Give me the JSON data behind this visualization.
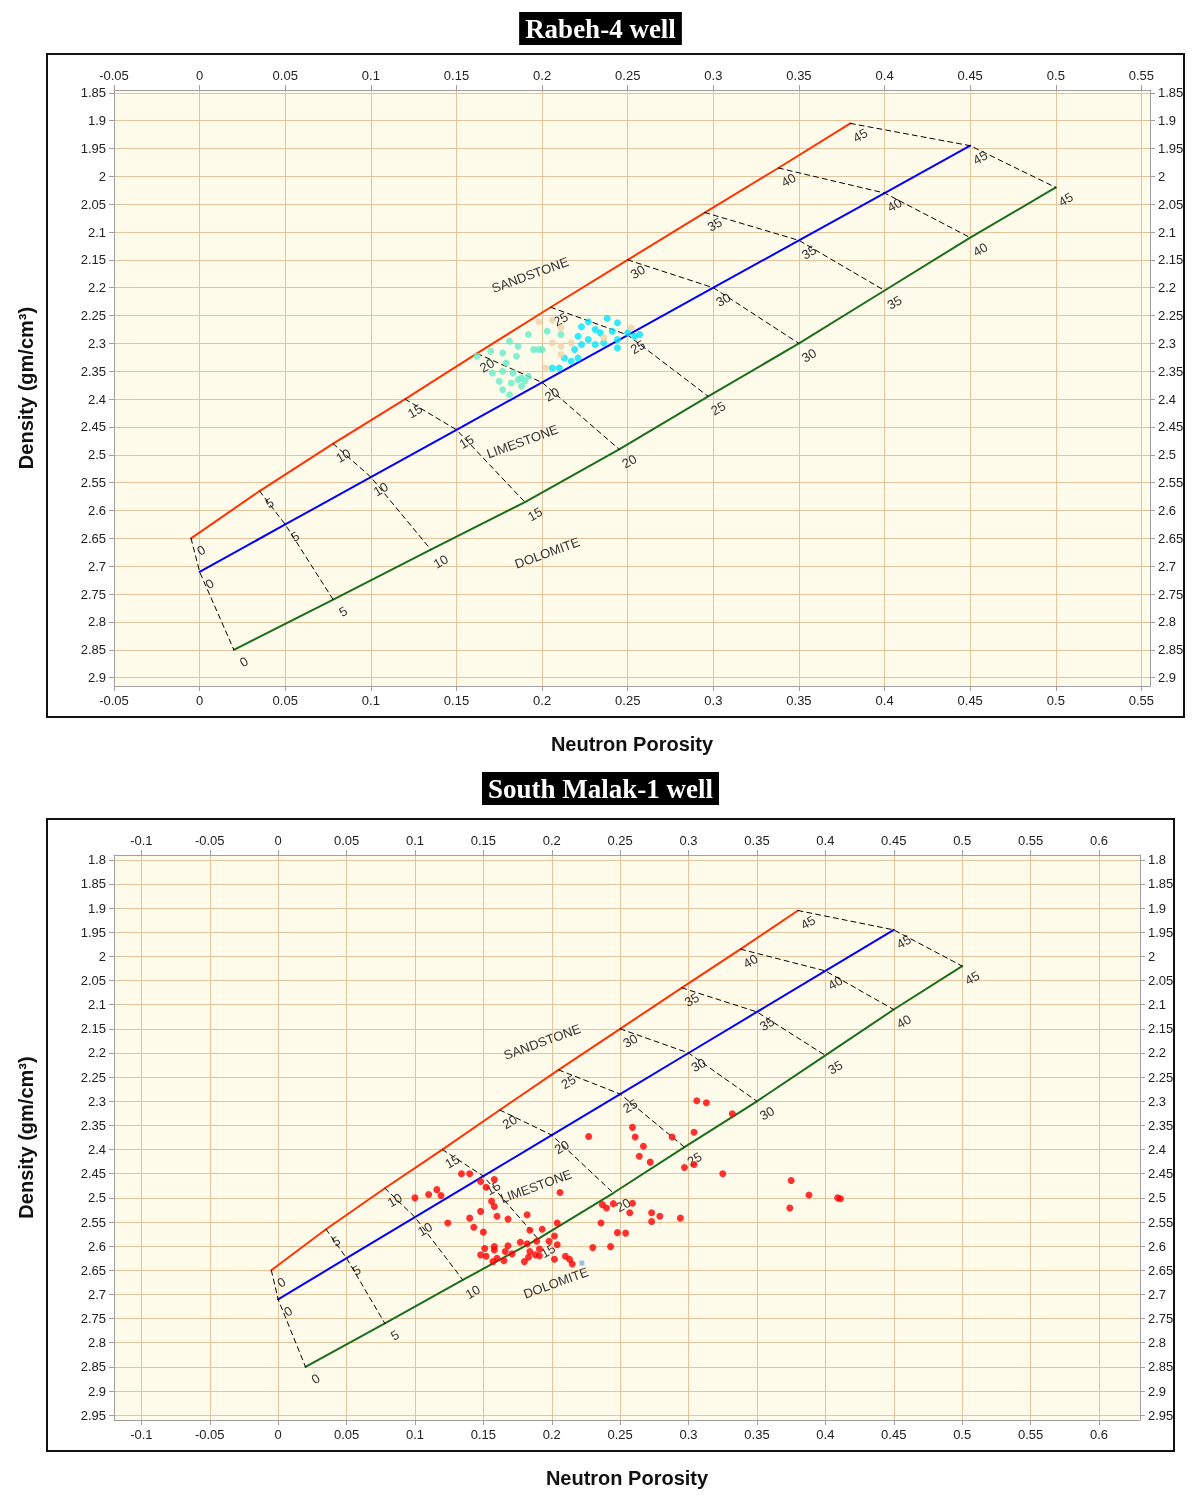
{
  "chart_data": [
    {
      "type": "scatter",
      "title": "Rabeh-4 well",
      "xlabel": "Neutron Porosity",
      "ylabel": "Density (gm/cm³)",
      "xlim": [
        -0.05,
        0.555
      ],
      "xticks": [
        -0.05,
        0,
        0.05,
        0.1,
        0.15,
        0.2,
        0.25,
        0.3,
        0.35,
        0.4,
        0.45,
        0.5,
        0.55
      ],
      "x2lim": [
        -0.05,
        0.555
      ],
      "x2ticks": [
        -0.05,
        0,
        0.05,
        0.1,
        0.15,
        0.2,
        0.25,
        0.3,
        0.35,
        0.4,
        0.45,
        0.5,
        0.55
      ],
      "ylim": [
        2.915,
        1.845
      ],
      "yticks": [
        1.85,
        1.9,
        1.95,
        2,
        2.05,
        2.1,
        2.15,
        2.2,
        2.25,
        2.3,
        2.35,
        2.4,
        2.45,
        2.5,
        2.55,
        2.6,
        2.65,
        2.7,
        2.75,
        2.8,
        2.85,
        2.9
      ],
      "y2lim": [
        2.915,
        1.845
      ],
      "y2ticks": [
        1.85,
        1.9,
        1.95,
        2,
        2.05,
        2.1,
        2.15,
        2.2,
        2.25,
        2.3,
        2.35,
        2.4,
        2.45,
        2.5,
        2.55,
        2.6,
        2.65,
        2.7,
        2.75,
        2.8,
        2.85,
        2.9
      ],
      "grid": true,
      "annotations": [
        {
          "text": "0",
          "x": -0.005,
          "y": 2.65
        },
        {
          "text": "5",
          "x": 0.035,
          "y": 2.565
        },
        {
          "text": "10",
          "x": 0.078,
          "y": 2.48
        },
        {
          "text": "15",
          "x": 0.12,
          "y": 2.4
        },
        {
          "text": "20",
          "x": 0.162,
          "y": 2.318
        },
        {
          "text": "25",
          "x": 0.205,
          "y": 2.235
        },
        {
          "text": "30",
          "x": 0.25,
          "y": 2.15
        },
        {
          "text": "35",
          "x": 0.295,
          "y": 2.065
        },
        {
          "text": "40",
          "x": 0.338,
          "y": 1.985
        },
        {
          "text": "45",
          "x": 0.38,
          "y": 1.905
        },
        {
          "text": "0",
          "x": 0,
          "y": 2.71
        },
        {
          "text": "5",
          "x": 0.05,
          "y": 2.625
        },
        {
          "text": "10",
          "x": 0.1,
          "y": 2.54
        },
        {
          "text": "15",
          "x": 0.15,
          "y": 2.455
        },
        {
          "text": "20",
          "x": 0.2,
          "y": 2.37
        },
        {
          "text": "25",
          "x": 0.25,
          "y": 2.285
        },
        {
          "text": "30",
          "x": 0.3,
          "y": 2.2
        },
        {
          "text": "35",
          "x": 0.35,
          "y": 2.115
        },
        {
          "text": "40",
          "x": 0.4,
          "y": 2.03
        },
        {
          "text": "45",
          "x": 0.45,
          "y": 1.945
        },
        {
          "text": "0",
          "x": 0.02,
          "y": 2.85
        },
        {
          "text": "5",
          "x": 0.078,
          "y": 2.76
        },
        {
          "text": "10",
          "x": 0.135,
          "y": 2.67
        },
        {
          "text": "15",
          "x": 0.19,
          "y": 2.585
        },
        {
          "text": "20",
          "x": 0.245,
          "y": 2.49
        },
        {
          "text": "25",
          "x": 0.297,
          "y": 2.395
        },
        {
          "text": "30",
          "x": 0.35,
          "y": 2.3
        },
        {
          "text": "35",
          "x": 0.4,
          "y": 2.205
        },
        {
          "text": "40",
          "x": 0.45,
          "y": 2.11
        },
        {
          "text": "45",
          "x": 0.5,
          "y": 2.02
        }
      ],
      "series": [
        {
          "type": "line",
          "name": "SANDSTONE",
          "color": "#ff3300",
          "marker": "none",
          "x": [
            -0.005,
            0.035,
            0.078,
            0.12,
            0.162,
            0.205,
            0.25,
            0.295,
            0.338,
            0.38
          ],
          "values": [
            2.65,
            2.565,
            2.48,
            2.4,
            2.318,
            2.235,
            2.15,
            2.065,
            1.985,
            1.905
          ]
        },
        {
          "type": "line",
          "name": "LIMESTONE",
          "color": "#0000ff",
          "marker": "none",
          "x": [
            0,
            0.05,
            0.1,
            0.15,
            0.2,
            0.25,
            0.3,
            0.35,
            0.4,
            0.45
          ],
          "values": [
            2.71,
            2.625,
            2.54,
            2.455,
            2.37,
            2.285,
            2.2,
            2.115,
            2.03,
            1.945
          ]
        },
        {
          "type": "line",
          "name": "DOLOMITE",
          "color": "#1a6e1a",
          "marker": "none",
          "x": [
            0.02,
            0.078,
            0.135,
            0.19,
            0.245,
            0.297,
            0.35,
            0.4,
            0.45,
            0.5
          ],
          "values": [
            2.85,
            2.76,
            2.67,
            2.585,
            2.49,
            2.395,
            2.3,
            2.205,
            2.11,
            2.02
          ]
        },
        {
          "type": "line",
          "color": "#000000",
          "marker": "none",
          "line_style": "dashed",
          "x": [
            -0.005,
            0,
            0.02
          ],
          "values": [
            2.65,
            2.71,
            2.85
          ]
        },
        {
          "type": "line",
          "color": "#000000",
          "marker": "none",
          "line_style": "dashed",
          "x": [
            0.035,
            0.05,
            0.078
          ],
          "values": [
            2.565,
            2.625,
            2.76
          ]
        },
        {
          "type": "line",
          "color": "#000000",
          "marker": "none",
          "line_style": "dashed",
          "x": [
            0.078,
            0.1,
            0.135
          ],
          "values": [
            2.48,
            2.54,
            2.67
          ]
        },
        {
          "type": "line",
          "color": "#000000",
          "marker": "none",
          "line_style": "dashed",
          "x": [
            0.12,
            0.15,
            0.19
          ],
          "values": [
            2.4,
            2.455,
            2.585
          ]
        },
        {
          "type": "line",
          "color": "#000000",
          "marker": "none",
          "line_style": "dashed",
          "x": [
            0.162,
            0.2,
            0.245
          ],
          "values": [
            2.318,
            2.37,
            2.49
          ]
        },
        {
          "type": "line",
          "color": "#000000",
          "marker": "none",
          "line_style": "dashed",
          "x": [
            0.205,
            0.25,
            0.297
          ],
          "values": [
            2.235,
            2.285,
            2.395
          ]
        },
        {
          "type": "line",
          "color": "#000000",
          "marker": "none",
          "line_style": "dashed",
          "x": [
            0.25,
            0.3,
            0.35
          ],
          "values": [
            2.15,
            2.2,
            2.3
          ]
        },
        {
          "type": "line",
          "color": "#000000",
          "marker": "none",
          "line_style": "dashed",
          "x": [
            0.295,
            0.35,
            0.4
          ],
          "values": [
            2.065,
            2.115,
            2.205
          ]
        },
        {
          "type": "line",
          "color": "#000000",
          "marker": "none",
          "line_style": "dashed",
          "x": [
            0.338,
            0.4,
            0.45
          ],
          "values": [
            1.985,
            2.03,
            2.11
          ]
        },
        {
          "type": "line",
          "color": "#000000",
          "marker": "none",
          "line_style": "dashed",
          "x": [
            0.38,
            0.45,
            0.5
          ],
          "values": [
            1.905,
            1.945,
            2.02
          ]
        },
        {
          "color": "#00e5ff",
          "marker": "circle",
          "x": [
            0.227,
            0.223,
            0.231,
            0.238,
            0.244,
            0.241,
            0.234,
            0.244,
            0.25,
            0.254,
            0.257,
            0.221,
            0.227,
            0.223,
            0.231,
            0.236,
            0.244,
            0.219,
            0.213,
            0.217,
            0.21,
            0.206,
            0.221
          ],
          "values": [
            2.261,
            2.27,
            2.275,
            2.255,
            2.263,
            2.278,
            2.281,
            2.293,
            2.281,
            2.287,
            2.284,
            2.287,
            2.293,
            2.302,
            2.302,
            2.299,
            2.308,
            2.311,
            2.326,
            2.332,
            2.344,
            2.344,
            2.326
          ]
        },
        {
          "color": "#66eec8",
          "marker": "circle",
          "x": [
            0.162,
            0.17,
            0.177,
            0.181,
            0.186,
            0.192,
            0.195,
            0.2,
            0.185,
            0.179,
            0.177,
            0.183,
            0.186,
            0.188,
            0.192,
            0.182,
            0.188,
            0.177,
            0.181,
            0.171,
            0.175,
            0.203,
            0.211,
            0.198,
            0.19
          ],
          "values": [
            2.323,
            2.314,
            2.317,
            2.296,
            2.305,
            2.284,
            2.311,
            2.311,
            2.323,
            2.335,
            2.35,
            2.353,
            2.365,
            2.362,
            2.359,
            2.371,
            2.377,
            2.383,
            2.392,
            2.353,
            2.368,
            2.278,
            2.284,
            2.311,
            2.368
          ]
        },
        {
          "color": "#f0d2aa",
          "marker": "circle",
          "x": [
            0.198,
            0.206,
            0.211,
            0.206,
            0.211,
            0.217,
            0.211,
            0.202,
            0.252,
            0.236
          ],
          "values": [
            2.261,
            2.258,
            2.272,
            2.299,
            2.305,
            2.299,
            2.32,
            2.344,
            2.272,
            2.29
          ]
        }
      ]
    },
    {
      "type": "scatter",
      "title": "South Malak-1 well",
      "xlabel": "Neutron Porosity",
      "ylabel": "Density (gm/cm³)",
      "xlim": [
        -0.12,
        0.63
      ],
      "xticks": [
        -0.1,
        -0.05,
        0,
        0.05,
        0.1,
        0.15,
        0.2,
        0.25,
        0.3,
        0.35,
        0.4,
        0.45,
        0.5,
        0.55,
        0.6
      ],
      "x2lim": [
        -0.12,
        0.63
      ],
      "x2ticks": [
        -0.1,
        -0.05,
        0,
        0.05,
        0.1,
        0.15,
        0.2,
        0.25,
        0.3,
        0.35,
        0.4,
        0.45,
        0.5,
        0.55,
        0.6
      ],
      "ylim": [
        2.96,
        1.79
      ],
      "yticks": [
        1.8,
        1.85,
        1.9,
        1.95,
        2,
        2.05,
        2.1,
        2.15,
        2.2,
        2.25,
        2.3,
        2.35,
        2.4,
        2.45,
        2.5,
        2.55,
        2.6,
        2.65,
        2.7,
        2.75,
        2.8,
        2.85,
        2.9,
        2.95
      ],
      "y2lim": [
        2.96,
        1.79
      ],
      "y2ticks": [
        1.8,
        1.85,
        1.9,
        1.95,
        2,
        2.05,
        2.1,
        2.15,
        2.2,
        2.25,
        2.3,
        2.35,
        2.4,
        2.45,
        2.5,
        2.55,
        2.6,
        2.65,
        2.7,
        2.75,
        2.8,
        2.85,
        2.9,
        2.95
      ],
      "grid": true,
      "annotations": [
        {
          "text": "0",
          "x": -0.005,
          "y": 2.65
        },
        {
          "text": "5",
          "x": 0.035,
          "y": 2.565
        },
        {
          "text": "10",
          "x": 0.078,
          "y": 2.48
        },
        {
          "text": "15",
          "x": 0.12,
          "y": 2.4
        },
        {
          "text": "20",
          "x": 0.162,
          "y": 2.318
        },
        {
          "text": "25",
          "x": 0.205,
          "y": 2.235
        },
        {
          "text": "30",
          "x": 0.25,
          "y": 2.15
        },
        {
          "text": "35",
          "x": 0.295,
          "y": 2.065
        },
        {
          "text": "40",
          "x": 0.338,
          "y": 1.985
        },
        {
          "text": "45",
          "x": 0.38,
          "y": 1.905
        },
        {
          "text": "0",
          "x": 0,
          "y": 2.71
        },
        {
          "text": "5",
          "x": 0.05,
          "y": 2.625
        },
        {
          "text": "10",
          "x": 0.1,
          "y": 2.54
        },
        {
          "text": "15",
          "x": 0.15,
          "y": 2.455
        },
        {
          "text": "20",
          "x": 0.2,
          "y": 2.37
        },
        {
          "text": "25",
          "x": 0.25,
          "y": 2.285
        },
        {
          "text": "30",
          "x": 0.3,
          "y": 2.2
        },
        {
          "text": "35",
          "x": 0.35,
          "y": 2.115
        },
        {
          "text": "40",
          "x": 0.4,
          "y": 2.03
        },
        {
          "text": "45",
          "x": 0.45,
          "y": 1.945
        },
        {
          "text": "0",
          "x": 0.02,
          "y": 2.85
        },
        {
          "text": "5",
          "x": 0.078,
          "y": 2.76
        },
        {
          "text": "10",
          "x": 0.135,
          "y": 2.67
        },
        {
          "text": "15",
          "x": 0.19,
          "y": 2.585
        },
        {
          "text": "20",
          "x": 0.245,
          "y": 2.49
        },
        {
          "text": "25",
          "x": 0.297,
          "y": 2.395
        },
        {
          "text": "30",
          "x": 0.35,
          "y": 2.3
        },
        {
          "text": "35",
          "x": 0.4,
          "y": 2.205
        },
        {
          "text": "40",
          "x": 0.45,
          "y": 2.11
        },
        {
          "text": "45",
          "x": 0.5,
          "y": 2.02
        }
      ],
      "series": [
        {
          "type": "line",
          "name": "SANDSTONE",
          "color": "#ff3300",
          "marker": "none",
          "x": [
            -0.005,
            0.035,
            0.078,
            0.12,
            0.162,
            0.205,
            0.25,
            0.295,
            0.338,
            0.38
          ],
          "values": [
            2.65,
            2.565,
            2.48,
            2.4,
            2.318,
            2.235,
            2.15,
            2.065,
            1.985,
            1.905
          ]
        },
        {
          "type": "line",
          "name": "LIMESTONE",
          "color": "#0000ff",
          "marker": "none",
          "x": [
            0,
            0.05,
            0.1,
            0.15,
            0.2,
            0.25,
            0.3,
            0.35,
            0.4,
            0.45
          ],
          "values": [
            2.71,
            2.625,
            2.54,
            2.455,
            2.37,
            2.285,
            2.2,
            2.115,
            2.03,
            1.945
          ]
        },
        {
          "type": "line",
          "name": "DOLOMITE",
          "color": "#1a6e1a",
          "marker": "none",
          "x": [
            0.02,
            0.078,
            0.135,
            0.19,
            0.245,
            0.297,
            0.35,
            0.4,
            0.45,
            0.5
          ],
          "values": [
            2.85,
            2.76,
            2.67,
            2.585,
            2.49,
            2.395,
            2.3,
            2.205,
            2.11,
            2.02
          ]
        },
        {
          "type": "line",
          "color": "#000000",
          "marker": "none",
          "line_style": "dashed",
          "x": [
            -0.005,
            0,
            0.02
          ],
          "values": [
            2.65,
            2.71,
            2.85
          ]
        },
        {
          "type": "line",
          "color": "#000000",
          "marker": "none",
          "line_style": "dashed",
          "x": [
            0.035,
            0.05,
            0.078
          ],
          "values": [
            2.565,
            2.625,
            2.76
          ]
        },
        {
          "type": "line",
          "color": "#000000",
          "marker": "none",
          "line_style": "dashed",
          "x": [
            0.078,
            0.1,
            0.135
          ],
          "values": [
            2.48,
            2.54,
            2.67
          ]
        },
        {
          "type": "line",
          "color": "#000000",
          "marker": "none",
          "line_style": "dashed",
          "x": [
            0.12,
            0.15,
            0.19
          ],
          "values": [
            2.4,
            2.455,
            2.585
          ]
        },
        {
          "type": "line",
          "color": "#000000",
          "marker": "none",
          "line_style": "dashed",
          "x": [
            0.162,
            0.2,
            0.245
          ],
          "values": [
            2.318,
            2.37,
            2.49
          ]
        },
        {
          "type": "line",
          "color": "#000000",
          "marker": "none",
          "line_style": "dashed",
          "x": [
            0.205,
            0.25,
            0.297
          ],
          "values": [
            2.235,
            2.285,
            2.395
          ]
        },
        {
          "type": "line",
          "color": "#000000",
          "marker": "none",
          "line_style": "dashed",
          "x": [
            0.25,
            0.3,
            0.35
          ],
          "values": [
            2.15,
            2.2,
            2.3
          ]
        },
        {
          "type": "line",
          "color": "#000000",
          "marker": "none",
          "line_style": "dashed",
          "x": [
            0.295,
            0.35,
            0.4
          ],
          "values": [
            2.065,
            2.115,
            2.205
          ]
        },
        {
          "type": "line",
          "color": "#000000",
          "marker": "none",
          "line_style": "dashed",
          "x": [
            0.338,
            0.4,
            0.45
          ],
          "values": [
            1.985,
            2.03,
            2.11
          ]
        },
        {
          "type": "line",
          "color": "#000000",
          "marker": "none",
          "line_style": "dashed",
          "x": [
            0.38,
            0.45,
            0.5
          ],
          "values": [
            1.905,
            1.945,
            2.02
          ]
        },
        {
          "color": "#ff0000",
          "marker": "circle",
          "x": [
            0.134,
            0.14,
            0.148,
            0.158,
            0.152,
            0.1,
            0.11,
            0.116,
            0.119,
            0.156,
            0.158,
            0.148,
            0.16,
            0.168,
            0.182,
            0.206,
            0.124,
            0.14,
            0.143,
            0.15,
            0.184,
            0.193,
            0.204,
            0.202,
            0.198,
            0.204,
            0.189,
            0.177,
            0.182,
            0.191,
            0.184,
            0.168,
            0.166,
            0.158,
            0.151,
            0.148,
            0.152,
            0.158,
            0.16,
            0.157,
            0.165,
            0.171,
            0.18,
            0.183,
            0.188,
            0.191,
            0.202,
            0.21,
            0.213,
            0.215,
            0.23,
            0.237,
            0.24,
            0.245,
            0.236,
            0.248,
            0.243,
            0.306,
            0.313,
            0.332,
            0.304,
            0.259,
            0.261,
            0.267,
            0.264,
            0.272,
            0.288,
            0.297,
            0.304,
            0.325,
            0.375,
            0.374,
            0.388,
            0.409,
            0.411,
            0.259,
            0.257,
            0.273,
            0.273,
            0.279,
            0.294,
            0.254,
            0.227
          ],
          "values": [
            2.45,
            2.45,
            2.466,
            2.462,
            2.478,
            2.5,
            2.493,
            2.483,
            2.495,
            2.507,
            2.518,
            2.528,
            2.538,
            2.544,
            2.535,
            2.489,
            2.552,
            2.542,
            2.561,
            2.571,
            2.567,
            2.565,
            2.552,
            2.579,
            2.59,
            2.597,
            2.59,
            2.592,
            2.595,
            2.606,
            2.611,
            2.599,
            2.611,
            2.601,
            2.605,
            2.618,
            2.621,
            2.608,
            2.625,
            2.632,
            2.63,
            2.616,
            2.632,
            2.623,
            2.618,
            2.62,
            2.627,
            2.621,
            2.627,
            2.637,
            2.603,
            2.514,
            2.521,
            2.512,
            2.552,
            2.572,
            2.601,
            2.299,
            2.303,
            2.326,
            2.364,
            2.354,
            2.374,
            2.393,
            2.414,
            2.426,
            2.374,
            2.437,
            2.431,
            2.45,
            2.464,
            2.521,
            2.494,
            2.5,
            2.502,
            2.511,
            2.531,
            2.531,
            2.549,
            2.538,
            2.542,
            2.573,
            2.373
          ]
        },
        {
          "color": "#7fb2e5",
          "marker": "square",
          "x": [
            0.222
          ],
          "values": [
            2.635
          ]
        }
      ]
    }
  ]
}
